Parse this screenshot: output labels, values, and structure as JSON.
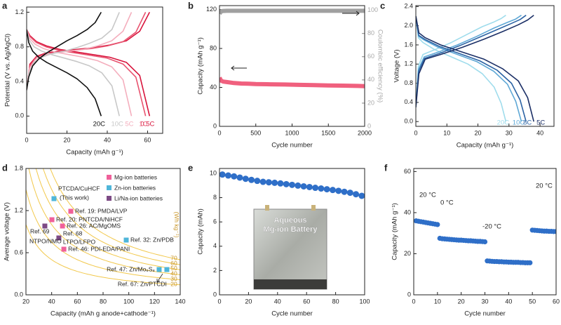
{
  "chart_data": [
    {
      "type": "line",
      "label": "a",
      "xlabel": "Capacity (mAh g⁻¹)",
      "ylabel": "Potential (V vs. Ag/AgCl)",
      "xlim": [
        0,
        67.5
      ],
      "ylim": [
        -0.2,
        1.26
      ],
      "xticks": [
        0,
        20,
        40,
        60
      ],
      "yticks": [
        {
          "value": 0,
          "label": "0.0"
        },
        0.4,
        0.8,
        1.2
      ],
      "series": [
        {
          "name": "0.5C",
          "color": "#d8143c",
          "x": [
            0,
            1.6,
            4.9,
            9.9,
            16.5,
            24.7,
            33,
            41.2,
            49.5,
            56.1,
            61,
            null,
            0,
            1.6,
            4.9,
            9.9,
            16.5,
            24.7,
            33,
            41.2,
            49.5,
            56.1,
            61
          ],
          "values": [
            0.3,
            0.6,
            0.69,
            0.73,
            0.75,
            0.77,
            0.79,
            0.82,
            0.87,
            0.98,
            1.2,
            null,
            1.0,
            0.93,
            0.86,
            0.81,
            0.77,
            0.74,
            0.71,
            0.68,
            0.62,
            0.47,
            0
          ]
        },
        {
          "name": "1C",
          "color": "#e8536f",
          "x": [
            0,
            1.6,
            4.8,
            9.6,
            16,
            23.9,
            31.9,
            39.9,
            47.9,
            54.2,
            59,
            null,
            0,
            1.6,
            4.8,
            9.6,
            16,
            23.9,
            31.9,
            39.9,
            47.9,
            54.2,
            59
          ],
          "values": [
            0.3,
            0.58,
            0.68,
            0.72,
            0.74,
            0.76,
            0.78,
            0.81,
            0.86,
            0.97,
            1.2,
            null,
            1.0,
            0.92,
            0.85,
            0.8,
            0.76,
            0.73,
            0.7,
            0.67,
            0.6,
            0.45,
            0
          ]
        },
        {
          "name": "5C",
          "color": "#f4aebd",
          "x": [
            0,
            1.4,
            4.2,
            8.4,
            14.1,
            21.1,
            28.1,
            35.1,
            42.2,
            47.8,
            52,
            null,
            0,
            1.4,
            4.2,
            8.4,
            14.1,
            21.1,
            28.1,
            35.1,
            42.2,
            47.8,
            52
          ],
          "values": [
            0.3,
            0.55,
            0.65,
            0.7,
            0.73,
            0.75,
            0.77,
            0.81,
            0.87,
            0.98,
            1.2,
            null,
            1.0,
            0.9,
            0.83,
            0.78,
            0.74,
            0.71,
            0.68,
            0.64,
            0.57,
            0.42,
            0
          ]
        },
        {
          "name": "10C",
          "color": "#c8c8c8",
          "x": [
            0,
            1.2,
            3.7,
            7.5,
            12.4,
            18.6,
            24.9,
            31.1,
            37.3,
            42.3,
            46,
            null,
            0,
            1.2,
            3.7,
            7.5,
            12.4,
            18.6,
            24.9,
            31.1,
            37.3,
            42.3,
            46
          ],
          "values": [
            0.3,
            0.5,
            0.62,
            0.68,
            0.72,
            0.75,
            0.79,
            0.84,
            0.9,
            1.0,
            1.2,
            null,
            1.0,
            0.88,
            0.8,
            0.75,
            0.71,
            0.67,
            0.63,
            0.58,
            0.5,
            0.35,
            0
          ]
        },
        {
          "name": "20C",
          "color": "#111111",
          "x": [
            0,
            1,
            3,
            6,
            10,
            15,
            20,
            25,
            30,
            34,
            37,
            null,
            0,
            1,
            3,
            6,
            10,
            15,
            20,
            25,
            30,
            34,
            37
          ],
          "values": [
            0.3,
            0.45,
            0.58,
            0.66,
            0.73,
            0.8,
            0.87,
            0.93,
            1.0,
            1.08,
            1.2,
            null,
            1.0,
            0.85,
            0.75,
            0.68,
            0.62,
            0.56,
            0.5,
            0.43,
            0.33,
            0.2,
            0
          ]
        }
      ]
    },
    {
      "type": "line",
      "label": "b",
      "xlabel": "Cycle number",
      "ylabel": "Capacity (mAh g⁻¹)",
      "y2label": "Coulombic efficiency (%)",
      "xlim": [
        0,
        2000
      ],
      "ylim": [
        0,
        124
      ],
      "y2lim": [
        0,
        104
      ],
      "xticks": [
        0,
        500,
        1000,
        1500,
        2000
      ],
      "yticks": [
        0,
        40,
        80,
        120
      ],
      "y2ticks": [
        0,
        20,
        40,
        60,
        80,
        100
      ],
      "series": [
        {
          "color": "#f0607e",
          "x": [
            1,
            20,
            50,
            100,
            200,
            300,
            400,
            500,
            700,
            900,
            1100,
            1300,
            1500,
            1700,
            1900,
            2000
          ],
          "values": [
            50,
            47,
            46,
            45.5,
            44.5,
            44,
            43.8,
            43.5,
            43.2,
            43,
            42.6,
            42.3,
            42,
            41.8,
            41.5,
            41.3
          ]
        },
        {
          "color": "#a0a0a0",
          "axis": "y2",
          "x": [
            1,
            20,
            50,
            100,
            200,
            300,
            400,
            500,
            700,
            900,
            1100,
            1300,
            1500,
            1700,
            1900,
            2000
          ],
          "values": [
            97,
            99,
            99.4,
            99.5,
            99.5,
            99.5,
            99.5,
            99.5,
            99.5,
            99.5,
            99.5,
            99.5,
            99.5,
            99.5,
            99.5,
            99.5
          ]
        }
      ]
    },
    {
      "type": "line",
      "label": "c",
      "xlabel": "Capacity (mAh g⁻¹)",
      "ylabel": "Voltage (V)",
      "xlim": [
        0,
        44.5
      ],
      "ylim": [
        -0.1,
        2.42
      ],
      "xticks": [
        0,
        10,
        20,
        30,
        40
      ],
      "yticks": [
        {
          "value": 0,
          "label": "0.0"
        },
        0.4,
        0.8,
        1.2,
        1.6,
        {
          "value": 2,
          "label": "2.0"
        },
        2.4
      ],
      "series": [
        {
          "name": "20C",
          "color": "#9fdcec",
          "x": [
            0,
            0.8,
            2.3,
            6.1,
            11.4,
            16.8,
            21.4,
            25.2,
            27.5,
            29,
            null,
            0,
            0.8,
            2.3,
            6.1,
            11.4,
            16.8,
            21.4,
            25.2,
            27.5,
            29
          ],
          "values": [
            0.3,
            1.15,
            1.4,
            1.5,
            1.65,
            1.83,
            1.98,
            2.08,
            2.15,
            2.22,
            null,
            2.2,
            1.75,
            1.65,
            1.5,
            1.35,
            1.2,
            1.0,
            0.72,
            0.38,
            0
          ]
        },
        {
          "name": "10C",
          "color": "#5fa8d6",
          "x": [
            0,
            0.9,
            2.7,
            7.2,
            13.4,
            19.7,
            25.1,
            29.5,
            32.2,
            34,
            null,
            0,
            0.9,
            2.7,
            7.2,
            13.4,
            19.7,
            25.1,
            29.5,
            32.2,
            34
          ],
          "values": [
            0.3,
            1.1,
            1.35,
            1.45,
            1.6,
            1.78,
            1.95,
            2.07,
            2.14,
            2.22,
            null,
            2.2,
            1.78,
            1.7,
            1.55,
            1.4,
            1.25,
            1.05,
            0.78,
            0.42,
            0
          ]
        },
        {
          "name": "8C",
          "color": "#2c63a4",
          "x": [
            0,
            0.9,
            2.8,
            7.5,
            14,
            20.5,
            26.2,
            30.8,
            33.6,
            35.5,
            null,
            0,
            0.9,
            2.8,
            7.5,
            14,
            20.5,
            26.2,
            30.8,
            33.6,
            35.5
          ],
          "values": [
            0.3,
            1.05,
            1.32,
            1.42,
            1.58,
            1.76,
            1.92,
            2.05,
            2.13,
            2.22,
            null,
            2.2,
            1.8,
            1.72,
            1.57,
            1.42,
            1.27,
            1.07,
            0.8,
            0.45,
            0
          ]
        },
        {
          "name": "5C",
          "color": "#1b2f66",
          "x": [
            0,
            1,
            3,
            8,
            15,
            22,
            28,
            33,
            36,
            38,
            null,
            0,
            1,
            3,
            8,
            15,
            22,
            28,
            33,
            36,
            38
          ],
          "values": [
            0.3,
            1.0,
            1.3,
            1.4,
            1.55,
            1.72,
            1.88,
            2.02,
            2.12,
            2.22,
            null,
            2.2,
            1.85,
            1.75,
            1.6,
            1.45,
            1.3,
            1.1,
            0.85,
            0.5,
            0
          ]
        }
      ]
    },
    {
      "type": "scatter",
      "label": "d",
      "xlabel": "Capacity (mAh g anode+cathode⁻¹)",
      "ylabel": "Average voltage (V)",
      "xlim": [
        20,
        140
      ],
      "ylim": [
        0,
        1.8
      ],
      "xticks": [
        20,
        40,
        60,
        80,
        100,
        120,
        140
      ],
      "yticks": [
        {
          "value": 0,
          "label": "0.0"
        },
        0.6,
        1.2,
        1.8
      ],
      "energy_levels": [
        70,
        60,
        50,
        40,
        30,
        20
      ],
      "energy_unit": "(Wh kg⁻¹)",
      "energy_color": "#f2c84b",
      "series": [
        {
          "name": "Mg-ion batteries",
          "color": "#f0609a",
          "x": [
            54.9,
            40.2,
            48.4,
            49.5
          ],
          "values": [
            1.19,
            1.07,
            0.98,
            0.65
          ],
          "labels": [
            [
              "Ref. 19: PMDA/LVP"
            ],
            [
              "Ref. 20: PNTCDA/NiHCF"
            ],
            [
              "Ref. 26: AC/MgOMS"
            ],
            [
              "Ref. 46: PDI-EDA/PANI"
            ]
          ]
        },
        {
          "name": "Zn-ion batteries",
          "color": "#4fb6d9",
          "x": [
            41.8,
            98,
            123.6,
            129.6
          ],
          "values": [
            1.37,
            0.78,
            0.36,
            0.36
          ],
          "labels": [
            [
              "PTCDA/CuHCF",
              "(This work)"
            ],
            [
              "Ref. 32: Zn/PDB"
            ],
            [
              "Ref. 47: Zn/Mo₆S₈"
            ],
            [
              "Ref. 67: Zn/PTCDI"
            ]
          ]
        },
        {
          "name": "Li/Na-ion batteries",
          "color": "#7d4a85",
          "x": [
            34.7,
            45.6
          ],
          "values": [
            0.98,
            0.81
          ],
          "labels": [
            [
              "Ref. 69",
              "NTPO/NMO"
            ],
            [
              "Ref. 68",
              "LTPO/LFPO"
            ]
          ]
        }
      ]
    },
    {
      "type": "scatter",
      "label": "e",
      "xlabel": "Cycle number",
      "ylabel": "Capacity (mAh)",
      "color": "#2f6fc8",
      "xlim": [
        0,
        100
      ],
      "ylim": [
        0,
        10.4
      ],
      "xticks": [
        0,
        20,
        40,
        60,
        80,
        100
      ],
      "yticks": [
        0,
        2,
        4,
        6,
        8,
        10
      ],
      "inset_text": [
        "Aqueous",
        "Mg-ion Battery"
      ],
      "x": [
        2,
        6,
        10,
        14,
        18,
        22,
        26,
        30,
        34,
        38,
        42,
        46,
        50,
        54,
        58,
        62,
        66,
        70,
        74,
        78,
        82,
        86,
        90,
        94,
        98
      ],
      "values": [
        9.9,
        9.82,
        9.75,
        9.65,
        9.55,
        9.46,
        9.38,
        9.3,
        9.26,
        9.22,
        9.17,
        9.11,
        9.05,
        8.99,
        8.93,
        8.87,
        8.81,
        8.75,
        8.69,
        8.63,
        8.56,
        8.48,
        8.4,
        8.28,
        8.15
      ]
    },
    {
      "type": "scatter",
      "label": "f",
      "xlabel": "Cycle number",
      "ylabel": "Capacity (mAh g⁻¹)",
      "color": "#2f6fc8",
      "xlim": [
        0,
        60
      ],
      "ylim": [
        0,
        61.5
      ],
      "xticks": [
        0,
        10,
        20,
        30,
        40,
        50,
        60
      ],
      "yticks": [
        0,
        20,
        40,
        60
      ],
      "annotations": [
        "20 °C",
        "0 °C",
        "-20 °C",
        "20 °C"
      ],
      "x": [
        1,
        2,
        3,
        4,
        5,
        6,
        7,
        8,
        9,
        10,
        11,
        12,
        13,
        14,
        15,
        16,
        17,
        18,
        19,
        20,
        21,
        22,
        23,
        24,
        25,
        26,
        27,
        28,
        29,
        30,
        31,
        32,
        33,
        34,
        35,
        36,
        37,
        38,
        39,
        40,
        41,
        42,
        43,
        44,
        45,
        46,
        47,
        48,
        49,
        50,
        51,
        52,
        53,
        54,
        55,
        56,
        57,
        58,
        59,
        60
      ],
      "values": [
        36,
        35.8,
        35.6,
        35.4,
        35.2,
        35,
        34.8,
        34.6,
        34.4,
        34.2,
        27.5,
        27.3,
        27.2,
        27.1,
        27,
        26.9,
        26.8,
        26.7,
        26.6,
        26.6,
        26.5,
        26.4,
        26.3,
        26.3,
        26.2,
        26.1,
        26,
        26,
        25.9,
        25.8,
        16.5,
        16.4,
        16.3,
        16.2,
        16.2,
        16.1,
        16.1,
        16,
        16,
        15.9,
        15.9,
        15.8,
        15.8,
        15.8,
        15.7,
        15.7,
        15.6,
        15.6,
        15.6,
        31.5,
        31.4,
        31.3,
        31.2,
        31.1,
        31,
        31,
        30.9,
        30.9,
        30.8,
        30.8
      ]
    }
  ]
}
